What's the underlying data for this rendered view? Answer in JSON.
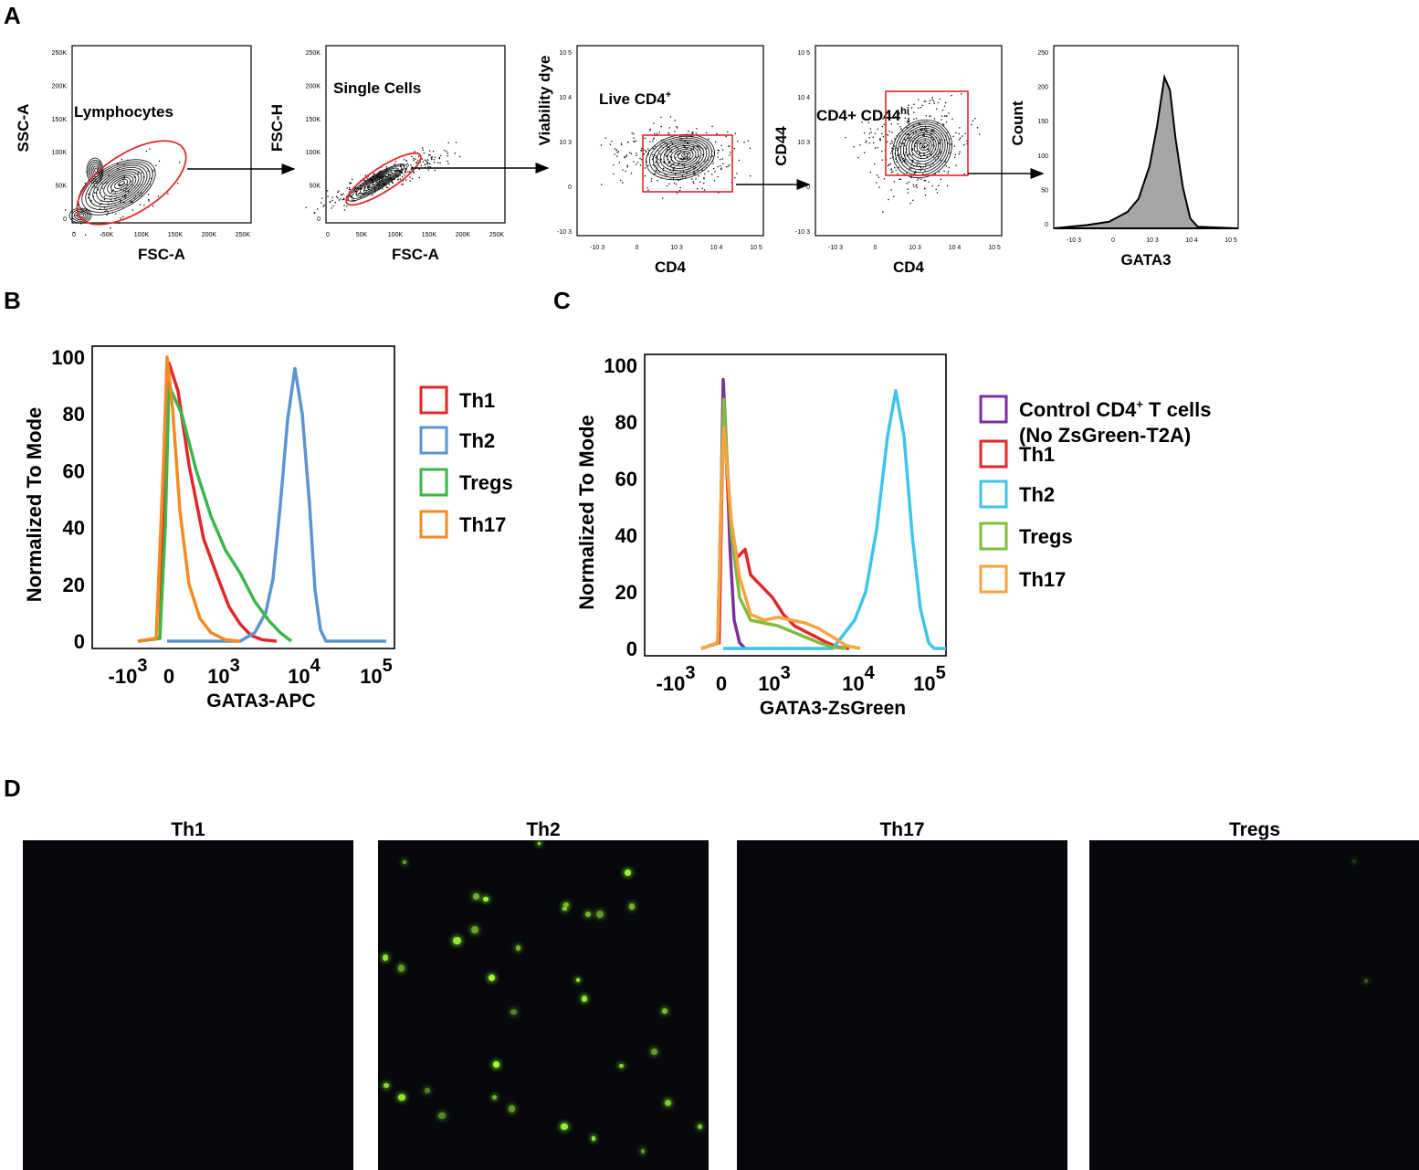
{
  "panels": {
    "a": "A",
    "b": "B",
    "c": "C",
    "d": "D"
  },
  "gating": {
    "plots": [
      {
        "gate_label": "Lymphocytes",
        "gate_sup": "",
        "xlabel": "FSC-A",
        "ylabel": "SSC-A",
        "xticks": [
          "0",
          "50K",
          "100K",
          "150K",
          "200K",
          "250K"
        ],
        "yticks": [
          "250K",
          "200K",
          "150K",
          "100K",
          "50K",
          "0"
        ]
      },
      {
        "gate_label": "Single Cells",
        "gate_sup": "",
        "xlabel": "FSC-A",
        "ylabel": "FSC-H",
        "xticks": [
          "0",
          "50K",
          "100K",
          "150K",
          "200K",
          "250K"
        ],
        "yticks": [
          "250K",
          "200K",
          "150K",
          "100K",
          "50K",
          "0"
        ]
      },
      {
        "gate_label": "Live CD4",
        "gate_sup": "+",
        "xlabel": "CD4",
        "ylabel": "Viability dye",
        "xticks": [
          "-10 3",
          "0",
          "10 3",
          "10 4",
          "10 5"
        ],
        "yticks": [
          "10 5",
          "10 4",
          "10 3",
          "0",
          "-10 3"
        ]
      },
      {
        "gate_label": "CD4+ CD44",
        "gate_sup": "hi",
        "xlabel": "CD4",
        "ylabel": "CD44",
        "xticks": [
          "-10 3",
          "0",
          "10 3",
          "10 4",
          "10 5"
        ],
        "yticks": [
          "10 5",
          "10 4",
          "10 3",
          "0",
          "-10 3"
        ]
      },
      {
        "gate_label": "",
        "gate_sup": "",
        "xlabel": "GATA3",
        "ylabel": "Count",
        "xticks": [
          "-10 3",
          "0",
          "10 3",
          "10 4",
          "10 5"
        ],
        "yticks": [
          "250",
          "200",
          "150",
          "100",
          "50",
          "0"
        ]
      }
    ]
  },
  "chart_data": [
    {
      "type": "line",
      "panel": "B",
      "xlabel": "GATA3-APC",
      "ylabel": "Normalized To Mode",
      "ylim": [
        0,
        100
      ],
      "yticks": [
        "100",
        "80",
        "60",
        "40",
        "20",
        "0"
      ],
      "xticks": [
        "-10",
        "0",
        "10",
        "10",
        "10"
      ],
      "xtick_sups": [
        "3",
        "",
        "3",
        "4",
        "5"
      ],
      "series": [
        {
          "name": "Th1",
          "color": "#e3262a",
          "points": [
            [
              -0.8,
              0
            ],
            [
              -0.2,
              1
            ],
            [
              -0.05,
              60
            ],
            [
              0.05,
              98
            ],
            [
              0.3,
              88
            ],
            [
              0.6,
              62
            ],
            [
              1.0,
              36
            ],
            [
              1.4,
              22
            ],
            [
              1.7,
              12
            ],
            [
              2.0,
              6
            ],
            [
              2.3,
              2
            ],
            [
              2.6,
              0.5
            ],
            [
              3.0,
              0
            ]
          ]
        },
        {
          "name": "Th2",
          "color": "#5b95d0",
          "points": [
            [
              0,
              0
            ],
            [
              2.0,
              0
            ],
            [
              2.4,
              3
            ],
            [
              2.7,
              10
            ],
            [
              2.9,
              22
            ],
            [
              3.1,
              48
            ],
            [
              3.3,
              78
            ],
            [
              3.5,
              96
            ],
            [
              3.7,
              80
            ],
            [
              3.9,
              48
            ],
            [
              4.05,
              18
            ],
            [
              4.2,
              4
            ],
            [
              4.35,
              0
            ],
            [
              6,
              0
            ]
          ]
        },
        {
          "name": "Tregs",
          "color": "#3cb54a",
          "points": [
            [
              -0.8,
              0
            ],
            [
              -0.2,
              1
            ],
            [
              -0.05,
              40
            ],
            [
              0.05,
              90
            ],
            [
              0.4,
              80
            ],
            [
              0.8,
              60
            ],
            [
              1.2,
              44
            ],
            [
              1.6,
              32
            ],
            [
              2.0,
              24
            ],
            [
              2.4,
              14
            ],
            [
              2.8,
              7
            ],
            [
              3.1,
              3
            ],
            [
              3.4,
              0
            ]
          ]
        },
        {
          "name": "Th17",
          "color": "#f58a25",
          "points": [
            [
              -0.8,
              0
            ],
            [
              -0.3,
              1
            ],
            [
              -0.1,
              62
            ],
            [
              0.0,
              100
            ],
            [
              0.15,
              82
            ],
            [
              0.35,
              46
            ],
            [
              0.6,
              20
            ],
            [
              0.9,
              8
            ],
            [
              1.2,
              3
            ],
            [
              1.6,
              0.5
            ],
            [
              2.0,
              0
            ]
          ]
        }
      ]
    },
    {
      "type": "line",
      "panel": "C",
      "xlabel": "GATA3-ZsGreen",
      "ylabel": "Normalized To Mode",
      "ylim": [
        0,
        100
      ],
      "yticks": [
        "100",
        "80",
        "60",
        "40",
        "20",
        "0"
      ],
      "xticks": [
        "-10",
        "0",
        "10",
        "10",
        "10"
      ],
      "xtick_sups": [
        "3",
        "",
        "3",
        "4",
        "5"
      ],
      "legend_lines": [
        "Control CD4",
        "+",
        " T cells",
        "(No ZsGreen-T2A)"
      ],
      "series": [
        {
          "name": "Control CD4+ T cells (No ZsGreen-T2A)",
          "color": "#7b2f9e",
          "points": [
            [
              -0.8,
              0
            ],
            [
              -0.2,
              2
            ],
            [
              -0.08,
              50
            ],
            [
              0.0,
              95
            ],
            [
              0.1,
              75
            ],
            [
              0.25,
              35
            ],
            [
              0.4,
              10
            ],
            [
              0.6,
              2
            ],
            [
              0.8,
              0
            ]
          ]
        },
        {
          "name": "Th1",
          "color": "#e3262a",
          "points": [
            [
              -0.8,
              0
            ],
            [
              -0.15,
              2
            ],
            [
              -0.05,
              55
            ],
            [
              0.02,
              85
            ],
            [
              0.2,
              50
            ],
            [
              0.5,
              32
            ],
            [
              0.8,
              35
            ],
            [
              1.0,
              26
            ],
            [
              1.4,
              22
            ],
            [
              1.8,
              18
            ],
            [
              2.2,
              12
            ],
            [
              2.6,
              8
            ],
            [
              3.0,
              6
            ],
            [
              3.4,
              4
            ],
            [
              3.8,
              2
            ],
            [
              4.2,
              0.5
            ],
            [
              4.6,
              0
            ]
          ]
        },
        {
          "name": "Th2",
          "color": "#3fc4ea",
          "points": [
            [
              0,
              0
            ],
            [
              4.0,
              0
            ],
            [
              4.4,
              5
            ],
            [
              4.8,
              10
            ],
            [
              5.2,
              20
            ],
            [
              5.6,
              42
            ],
            [
              6.0,
              75
            ],
            [
              6.3,
              91
            ],
            [
              6.6,
              75
            ],
            [
              6.9,
              40
            ],
            [
              7.2,
              14
            ],
            [
              7.5,
              2
            ],
            [
              7.7,
              0
            ],
            [
              9,
              0
            ]
          ]
        },
        {
          "name": "Tregs",
          "color": "#7fbd3b",
          "points": [
            [
              -0.8,
              0
            ],
            [
              -0.2,
              2
            ],
            [
              -0.05,
              65
            ],
            [
              0.02,
              88
            ],
            [
              0.3,
              40
            ],
            [
              0.6,
              18
            ],
            [
              1.0,
              10
            ],
            [
              1.5,
              9
            ],
            [
              2.0,
              8
            ],
            [
              2.5,
              6
            ],
            [
              3.0,
              4
            ],
            [
              3.5,
              2
            ],
            [
              4.0,
              0.5
            ],
            [
              4.5,
              0
            ]
          ]
        },
        {
          "name": "Th17",
          "color": "#f7a341",
          "points": [
            [
              -0.8,
              0
            ],
            [
              -0.2,
              2
            ],
            [
              -0.05,
              60
            ],
            [
              0.02,
              78
            ],
            [
              0.3,
              45
            ],
            [
              0.6,
              25
            ],
            [
              1.0,
              12
            ],
            [
              1.5,
              10
            ],
            [
              2.0,
              11
            ],
            [
              2.5,
              10
            ],
            [
              3.0,
              9
            ],
            [
              3.5,
              7
            ],
            [
              4.0,
              4
            ],
            [
              4.5,
              1
            ],
            [
              5.0,
              0
            ]
          ]
        }
      ]
    }
  ],
  "micrographs": {
    "titles": [
      "Th1",
      "Th2",
      "Th17",
      "Tregs"
    ]
  }
}
